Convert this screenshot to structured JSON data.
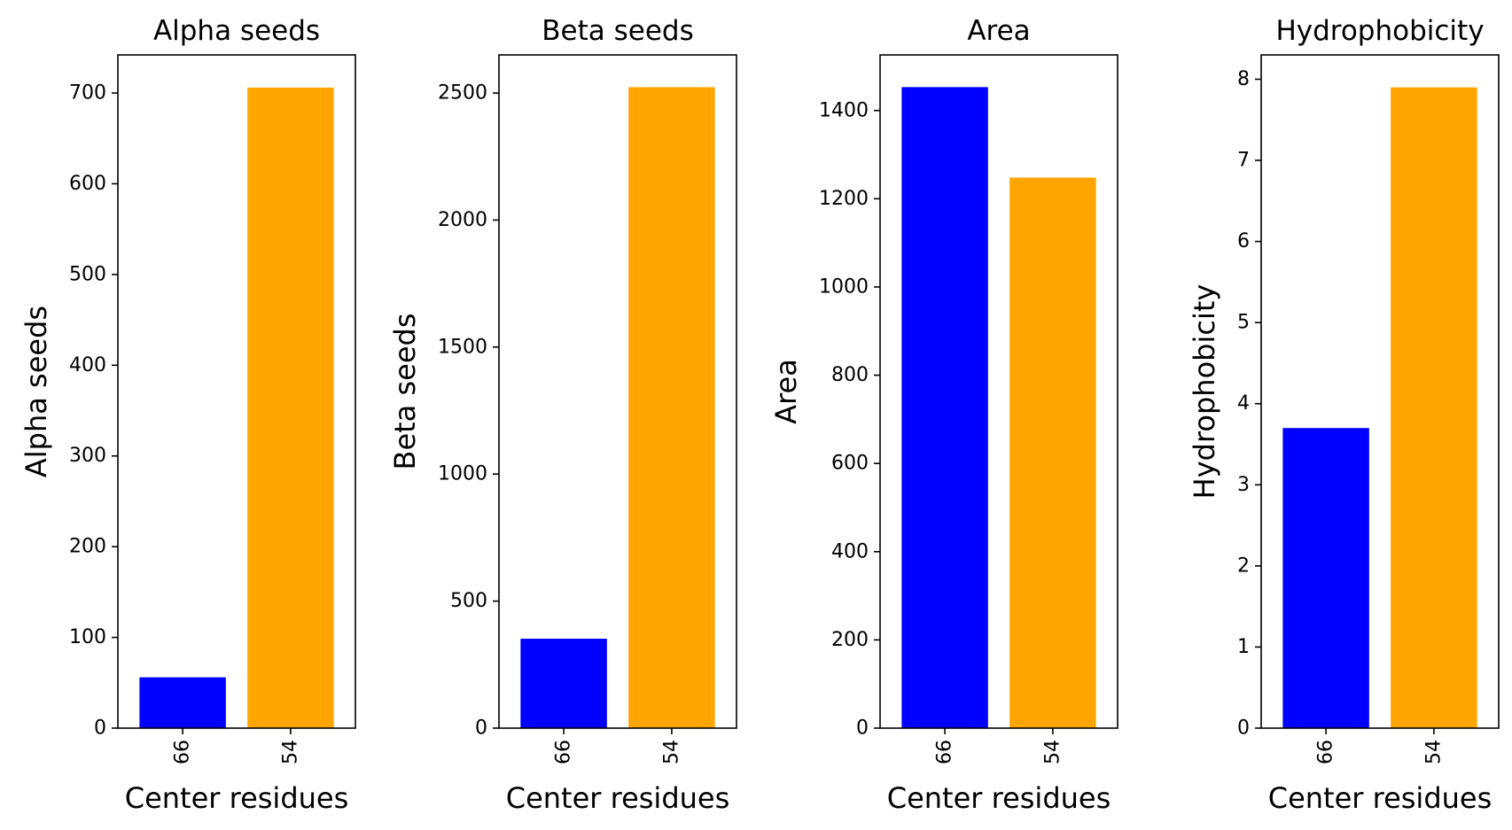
{
  "chart_data": [
    {
      "type": "bar",
      "title": "Alpha seeds",
      "xlabel": "Center residues",
      "ylabel": "Alpha seeds",
      "categories": [
        "66",
        "54"
      ],
      "values": [
        56,
        706
      ],
      "colors": [
        "#0000ff",
        "#ffa500"
      ],
      "ylim": [
        0,
        742
      ],
      "yticks": [
        0,
        100,
        200,
        300,
        400,
        500,
        600,
        700
      ],
      "grid": false
    },
    {
      "type": "bar",
      "title": "Beta seeds",
      "xlabel": "Center residues",
      "ylabel": "Beta seeds",
      "categories": [
        "66",
        "54"
      ],
      "values": [
        352,
        2523
      ],
      "colors": [
        "#0000ff",
        "#ffa500"
      ],
      "ylim": [
        0,
        2650
      ],
      "yticks": [
        0,
        500,
        1000,
        1500,
        2000,
        2500
      ],
      "grid": false
    },
    {
      "type": "bar",
      "title": "Area",
      "xlabel": "Center residues",
      "ylabel": "Area",
      "categories": [
        "66",
        "54"
      ],
      "values": [
        1453,
        1248
      ],
      "colors": [
        "#0000ff",
        "#ffa500"
      ],
      "ylim": [
        0,
        1526
      ],
      "yticks": [
        0,
        200,
        400,
        600,
        800,
        1000,
        1200,
        1400
      ],
      "grid": false
    },
    {
      "type": "bar",
      "title": "Hydrophobicity",
      "xlabel": "Center residues",
      "ylabel": "Hydrophobicity",
      "categories": [
        "66",
        "54"
      ],
      "values": [
        3.7,
        7.9
      ],
      "colors": [
        "#0000ff",
        "#ffa500"
      ],
      "ylim": [
        0,
        8.3
      ],
      "yticks": [
        0,
        1,
        2,
        3,
        4,
        5,
        6,
        7,
        8
      ],
      "grid": false
    }
  ]
}
